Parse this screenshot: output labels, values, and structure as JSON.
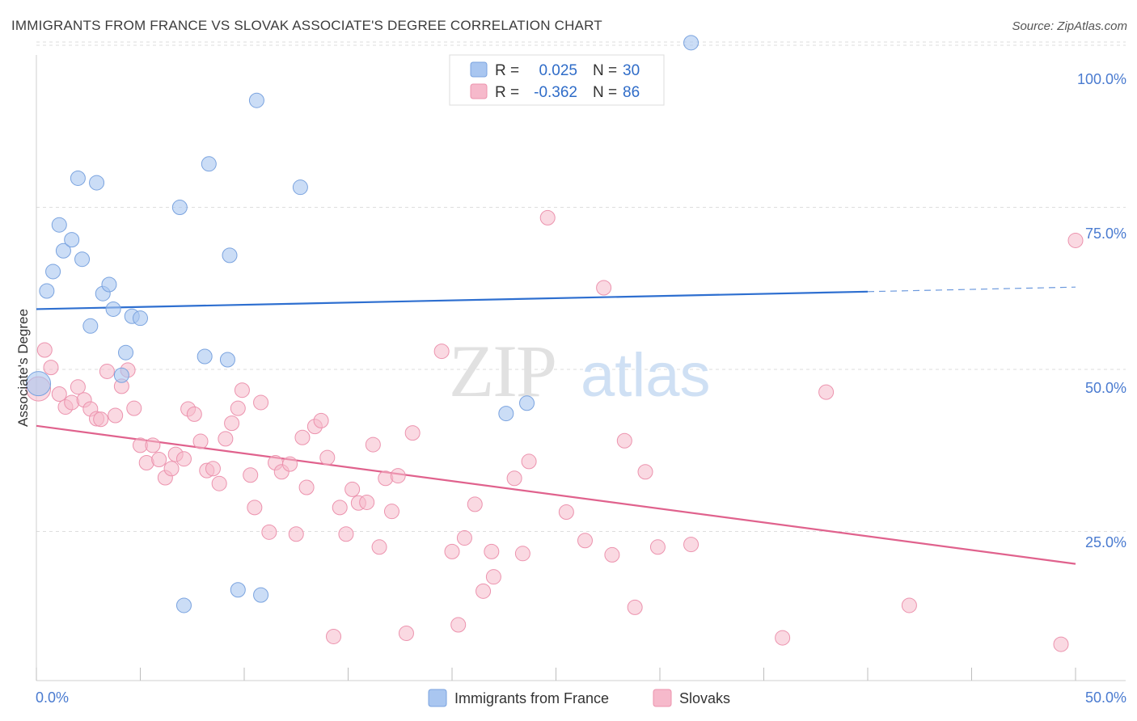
{
  "header": {
    "title": "IMMIGRANTS FROM FRANCE VS SLOVAK ASSOCIATE'S DEGREE CORRELATION CHART",
    "source": "Source: ZipAtlas.com"
  },
  "watermark": {
    "zip": "ZIP",
    "atlas": "atlas"
  },
  "legend": {
    "rows": [
      {
        "r_label": "R =",
        "r_value": "0.025",
        "n_label": "N =",
        "n_value": "30"
      },
      {
        "r_label": "R =",
        "r_value": "-0.362",
        "n_label": "N =",
        "n_value": "86"
      }
    ]
  },
  "chart_data": {
    "type": "scatter",
    "title": "IMMIGRANTS FROM FRANCE VS SLOVAK ASSOCIATE'S DEGREE CORRELATION CHART",
    "xlabel": "",
    "ylabel": "Associate's Degree",
    "xlim": [
      0,
      50
    ],
    "ylim": [
      2,
      102
    ],
    "x_tick_labels": [
      "0.0%",
      "50.0%"
    ],
    "y_ticks": [
      25,
      50,
      75,
      100
    ],
    "y_tick_labels": [
      "25.0%",
      "50.0%",
      "75.0%",
      "100.0%"
    ],
    "grid": true,
    "colors": {
      "france": "#a9c6f0",
      "france_edge": "#7aa3df",
      "france_line": "#2e6fd0",
      "slovak": "#f6b9cb",
      "slovak_edge": "#ec93ae",
      "slovak_line": "#e0628d"
    },
    "series": [
      {
        "name": "Immigrants from France",
        "r": 0.025,
        "n": 30,
        "trend": {
          "x": [
            0,
            40
          ],
          "y": [
            59.3,
            62.0
          ],
          "dashed_to": [
            50,
            62.7
          ]
        },
        "points": [
          [
            0.1,
            47.8
          ],
          [
            0.5,
            62.1
          ],
          [
            0.8,
            65.1
          ],
          [
            1.1,
            72.3
          ],
          [
            1.3,
            68.3
          ],
          [
            1.7,
            70.0
          ],
          [
            2.0,
            79.5
          ],
          [
            2.2,
            67.0
          ],
          [
            2.6,
            56.7
          ],
          [
            2.9,
            78.8
          ],
          [
            3.2,
            61.7
          ],
          [
            3.5,
            63.1
          ],
          [
            3.7,
            59.3
          ],
          [
            4.1,
            49.1
          ],
          [
            4.3,
            52.6
          ],
          [
            4.6,
            58.2
          ],
          [
            5.0,
            57.9
          ],
          [
            6.9,
            75.0
          ],
          [
            7.1,
            13.6
          ],
          [
            8.1,
            52.0
          ],
          [
            8.3,
            81.7
          ],
          [
            9.2,
            51.5
          ],
          [
            9.3,
            67.6
          ],
          [
            9.7,
            16.0
          ],
          [
            10.6,
            91.5
          ],
          [
            10.8,
            15.2
          ],
          [
            12.7,
            78.1
          ],
          [
            22.6,
            43.2
          ],
          [
            23.6,
            44.8
          ],
          [
            31.5,
            100.4
          ]
        ]
      },
      {
        "name": "Slovaks",
        "r": -0.362,
        "n": 86,
        "trend": {
          "x": [
            0,
            50
          ],
          "y": [
            41.3,
            20.0
          ]
        },
        "points": [
          [
            0.1,
            47.0
          ],
          [
            0.4,
            53.0
          ],
          [
            0.7,
            50.3
          ],
          [
            1.1,
            46.2
          ],
          [
            1.4,
            44.2
          ],
          [
            1.7,
            44.9
          ],
          [
            2.0,
            47.3
          ],
          [
            2.3,
            45.3
          ],
          [
            2.6,
            43.9
          ],
          [
            2.9,
            42.4
          ],
          [
            3.1,
            42.3
          ],
          [
            3.4,
            49.7
          ],
          [
            3.8,
            42.9
          ],
          [
            4.1,
            47.4
          ],
          [
            4.4,
            49.9
          ],
          [
            4.7,
            44.0
          ],
          [
            5.0,
            38.3
          ],
          [
            5.3,
            35.6
          ],
          [
            5.6,
            38.3
          ],
          [
            5.9,
            36.1
          ],
          [
            6.2,
            33.3
          ],
          [
            6.5,
            34.7
          ],
          [
            6.7,
            36.9
          ],
          [
            7.1,
            36.2
          ],
          [
            7.3,
            43.9
          ],
          [
            7.6,
            43.1
          ],
          [
            7.9,
            38.9
          ],
          [
            8.2,
            34.4
          ],
          [
            8.5,
            34.7
          ],
          [
            8.8,
            32.4
          ],
          [
            9.1,
            39.3
          ],
          [
            9.4,
            41.7
          ],
          [
            9.7,
            44.0
          ],
          [
            9.9,
            46.8
          ],
          [
            10.3,
            33.7
          ],
          [
            10.5,
            28.7
          ],
          [
            10.8,
            44.9
          ],
          [
            11.2,
            24.9
          ],
          [
            11.5,
            35.6
          ],
          [
            11.8,
            34.2
          ],
          [
            12.2,
            35.4
          ],
          [
            12.5,
            24.6
          ],
          [
            12.8,
            39.5
          ],
          [
            13.0,
            31.8
          ],
          [
            13.4,
            41.2
          ],
          [
            13.7,
            42.1
          ],
          [
            14.0,
            36.4
          ],
          [
            14.3,
            8.8
          ],
          [
            14.6,
            28.7
          ],
          [
            14.9,
            24.6
          ],
          [
            15.2,
            31.5
          ],
          [
            15.5,
            29.4
          ],
          [
            15.9,
            29.5
          ],
          [
            16.2,
            38.4
          ],
          [
            16.5,
            22.6
          ],
          [
            16.8,
            33.2
          ],
          [
            17.1,
            28.1
          ],
          [
            17.4,
            33.6
          ],
          [
            17.8,
            9.3
          ],
          [
            18.1,
            40.2
          ],
          [
            19.5,
            52.8
          ],
          [
            20.0,
            21.9
          ],
          [
            20.3,
            10.6
          ],
          [
            20.6,
            24.0
          ],
          [
            21.1,
            29.2
          ],
          [
            21.5,
            15.8
          ],
          [
            21.9,
            21.9
          ],
          [
            22.0,
            18.0
          ],
          [
            23.0,
            33.2
          ],
          [
            23.4,
            21.6
          ],
          [
            23.7,
            35.8
          ],
          [
            24.6,
            73.4
          ],
          [
            25.5,
            28.0
          ],
          [
            26.4,
            23.6
          ],
          [
            27.3,
            62.6
          ],
          [
            27.7,
            21.4
          ],
          [
            28.3,
            39.0
          ],
          [
            28.8,
            13.3
          ],
          [
            29.3,
            34.2
          ],
          [
            29.9,
            22.6
          ],
          [
            31.5,
            23.0
          ],
          [
            35.9,
            8.6
          ],
          [
            38.0,
            46.5
          ],
          [
            42.0,
            13.6
          ],
          [
            49.3,
            7.6
          ],
          [
            50.0,
            69.9
          ]
        ]
      }
    ]
  },
  "bottom_legend": {
    "france_label": "Immigrants from France",
    "slovak_label": "Slovaks"
  }
}
